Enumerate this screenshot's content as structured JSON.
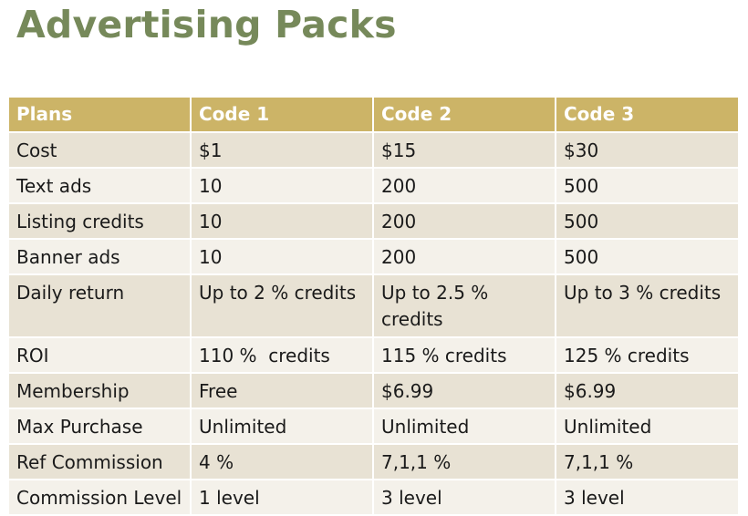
{
  "title": "Advertising Packs",
  "colors": {
    "title": "#76895a",
    "header_bg": "#ccb467",
    "row_dark": "#e8e2d4",
    "row_light": "#f4f1ea"
  },
  "table": {
    "headers": [
      "Plans",
      "Code 1",
      "Code 2",
      "Code 3"
    ],
    "rows": [
      [
        "Cost",
        "$1",
        "$15",
        "$30"
      ],
      [
        "Text ads",
        "10",
        "200",
        "500"
      ],
      [
        "Listing credits",
        "10",
        "200",
        "500"
      ],
      [
        "Banner ads",
        "10",
        "200",
        "500"
      ],
      [
        "Daily return",
        "Up to 2 % credits",
        "Up to 2.5 % credits",
        "Up to 3 % credits"
      ],
      [
        "ROI",
        "110 %  credits",
        "115 % credits",
        "125 % credits"
      ],
      [
        "Membership",
        "Free",
        "$6.99",
        "$6.99"
      ],
      [
        "Max Purchase",
        "Unlimited",
        "Unlimited",
        "Unlimited"
      ],
      [
        "Ref Commission",
        "4 %",
        "7,1,1 %",
        "7,1,1 %"
      ],
      [
        "Commission Level",
        "1 level",
        "3 level",
        "3 level"
      ]
    ]
  }
}
